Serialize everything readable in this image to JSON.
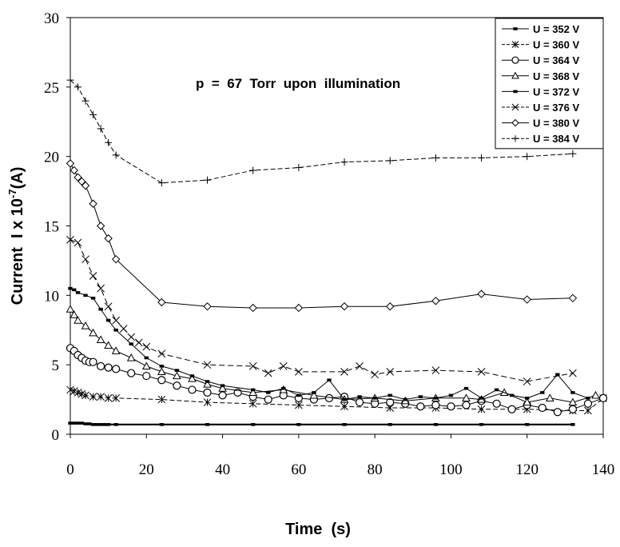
{
  "chart_data": {
    "type": "line",
    "title": "",
    "annotation": "p  =  67  Torr  upon  illumination",
    "xlabel": "Time  (s)",
    "ylabel_prefix": "Current  I x 10",
    "ylabel_exponent": "-7",
    "ylabel_suffix": "(A)",
    "xlim": [
      0,
      140
    ],
    "ylim": [
      0,
      30
    ],
    "xticks": [
      0,
      20,
      40,
      60,
      80,
      100,
      120,
      140
    ],
    "yticks": [
      0,
      5,
      10,
      15,
      20,
      25,
      30
    ],
    "grid": false,
    "legend_position": "top-right",
    "series": [
      {
        "name": "U = 352 V",
        "marker": "square",
        "color": "#000000",
        "dash": "",
        "x": [
          0,
          1,
          2,
          3,
          4,
          5,
          6,
          7,
          8,
          9,
          10,
          12,
          24,
          36,
          48,
          60,
          72,
          84,
          96,
          108,
          120,
          132
        ],
        "y": [
          0.8,
          0.8,
          0.8,
          0.8,
          0.75,
          0.75,
          0.7,
          0.7,
          0.7,
          0.7,
          0.7,
          0.7,
          0.7,
          0.7,
          0.7,
          0.7,
          0.7,
          0.7,
          0.7,
          0.7,
          0.7,
          0.7
        ]
      },
      {
        "name": "U = 360 V",
        "marker": "asterisk",
        "color": "#000000",
        "dash": "6,3",
        "x": [
          0,
          1,
          2,
          3,
          4,
          6,
          8,
          10,
          12,
          24,
          36,
          48,
          60,
          72,
          84,
          96,
          108,
          120,
          132,
          136,
          140
        ],
        "y": [
          3.2,
          3.1,
          3.0,
          2.9,
          2.8,
          2.7,
          2.7,
          2.6,
          2.6,
          2.5,
          2.3,
          2.2,
          2.1,
          2.0,
          1.9,
          1.9,
          1.8,
          1.8,
          1.7,
          1.7,
          2.6
        ]
      },
      {
        "name": "U = 364 V",
        "marker": "circle",
        "color": "#000000",
        "dash": "",
        "x": [
          0,
          1,
          2,
          3,
          4,
          5,
          6,
          8,
          10,
          12,
          16,
          20,
          24,
          28,
          32,
          36,
          40,
          44,
          48,
          52,
          56,
          60,
          64,
          68,
          72,
          76,
          80,
          84,
          88,
          92,
          96,
          100,
          104,
          108,
          112,
          116,
          120,
          124,
          128,
          132,
          136,
          140
        ],
        "y": [
          6.2,
          6.0,
          5.7,
          5.5,
          5.3,
          5.2,
          5.2,
          4.9,
          4.8,
          4.7,
          4.4,
          4.2,
          3.9,
          3.5,
          3.2,
          3.0,
          2.8,
          3.0,
          2.7,
          2.5,
          2.8,
          2.6,
          2.5,
          2.6,
          2.7,
          2.3,
          2.2,
          2.3,
          2.2,
          2.0,
          2.1,
          2.0,
          2.1,
          2.4,
          2.2,
          1.8,
          2.1,
          1.9,
          1.6,
          1.8,
          2.2,
          2.6
        ]
      },
      {
        "name": "U = 368 V",
        "marker": "triangle",
        "color": "#000000",
        "dash": "",
        "x": [
          0,
          1,
          2,
          4,
          6,
          8,
          10,
          12,
          16,
          20,
          24,
          28,
          32,
          36,
          40,
          48,
          56,
          64,
          72,
          80,
          88,
          96,
          104,
          108,
          114,
          120,
          126,
          132,
          138
        ],
        "y": [
          9.0,
          8.6,
          8.2,
          7.8,
          7.3,
          6.8,
          6.4,
          6.0,
          5.5,
          4.9,
          4.5,
          4.2,
          4.0,
          3.6,
          3.3,
          3.0,
          3.2,
          2.8,
          2.5,
          2.6,
          2.4,
          2.6,
          2.6,
          2.5,
          3.0,
          2.3,
          2.6,
          2.3,
          2.8
        ]
      },
      {
        "name": "U = 372 V",
        "marker": "square",
        "color": "#000000",
        "dash": "",
        "x": [
          0,
          1,
          2,
          4,
          6,
          8,
          10,
          12,
          16,
          20,
          24,
          28,
          32,
          36,
          40,
          48,
          52,
          56,
          60,
          64,
          68,
          72,
          76,
          80,
          84,
          88,
          92,
          96,
          100,
          104,
          108,
          112,
          116,
          120,
          124,
          128,
          132,
          136
        ],
        "y": [
          10.5,
          10.4,
          10.2,
          10.0,
          9.8,
          9.0,
          8.2,
          7.5,
          6.5,
          5.5,
          4.9,
          4.6,
          4.2,
          3.8,
          3.5,
          3.2,
          3.0,
          3.3,
          2.8,
          3.0,
          3.9,
          2.5,
          2.7,
          2.6,
          2.8,
          2.5,
          2.7,
          2.6,
          2.8,
          3.3,
          2.6,
          3.2,
          2.8,
          2.6,
          3.0,
          4.3,
          3.0,
          2.6
        ]
      },
      {
        "name": "U = 376 V",
        "marker": "x",
        "color": "#000000",
        "dash": "7,4",
        "x": [
          0,
          2,
          4,
          6,
          8,
          10,
          12,
          14,
          16,
          18,
          20,
          24,
          36,
          48,
          52,
          56,
          60,
          72,
          76,
          80,
          84,
          96,
          108,
          120,
          132
        ],
        "y": [
          14.0,
          13.8,
          12.6,
          11.4,
          10.5,
          9.2,
          8.2,
          7.6,
          7.0,
          6.6,
          6.3,
          5.8,
          5.0,
          4.9,
          4.4,
          4.9,
          4.5,
          4.5,
          4.9,
          4.3,
          4.5,
          4.6,
          4.5,
          3.8,
          4.4
        ]
      },
      {
        "name": "U = 380 V",
        "marker": "diamond",
        "color": "#000000",
        "dash": "",
        "x": [
          0,
          1,
          2,
          3,
          4,
          6,
          8,
          10,
          12,
          24,
          36,
          48,
          60,
          72,
          84,
          96,
          108,
          120,
          132
        ],
        "y": [
          19.5,
          19.0,
          18.5,
          18.2,
          17.9,
          16.6,
          15.0,
          14.1,
          12.6,
          9.5,
          9.2,
          9.1,
          9.1,
          9.2,
          9.2,
          9.6,
          10.1,
          9.7,
          9.8
        ]
      },
      {
        "name": "U = 384 V",
        "marker": "plus",
        "color": "#000000",
        "dash": "6,3",
        "x": [
          0,
          2,
          4,
          6,
          8,
          10,
          12,
          24,
          36,
          48,
          60,
          72,
          84,
          96,
          108,
          120,
          132
        ],
        "y": [
          25.5,
          25.0,
          24.0,
          23.0,
          22.0,
          21.0,
          20.1,
          18.1,
          18.3,
          19.0,
          19.2,
          19.6,
          19.7,
          19.9,
          19.9,
          20.0,
          20.2
        ]
      }
    ]
  }
}
